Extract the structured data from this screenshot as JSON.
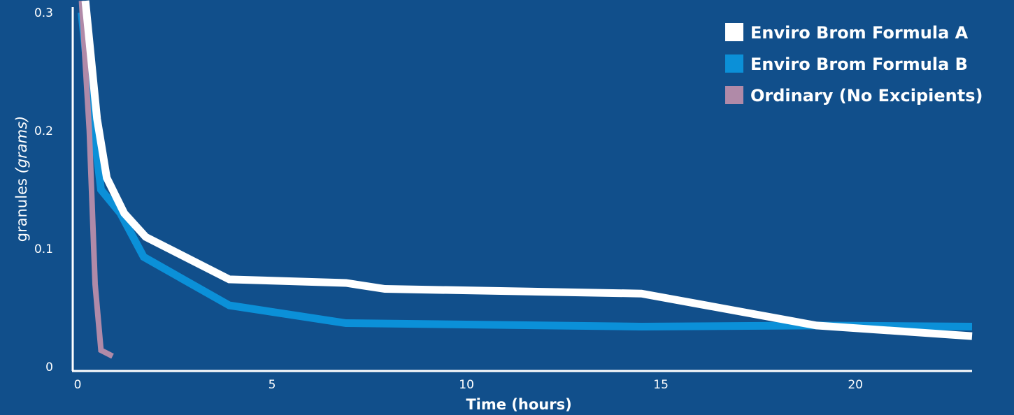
{
  "chart_data": {
    "type": "line",
    "title": "",
    "xlabel": "Time (hours)",
    "ylabel_main": "granules ",
    "ylabel_unit": "(grams)",
    "xlim": [
      0,
      23
    ],
    "ylim": [
      0,
      0.3
    ],
    "x_ticks": [
      {
        "value": 0,
        "label": "0"
      },
      {
        "value": 5,
        "label": "5"
      },
      {
        "value": 10,
        "label": "10"
      },
      {
        "value": 15,
        "label": "15"
      },
      {
        "value": 20,
        "label": "20"
      }
    ],
    "y_ticks": [
      {
        "value": 0,
        "label": "0"
      },
      {
        "value": 0.1,
        "label": "0.1"
      },
      {
        "value": 0.2,
        "label": "0.2"
      },
      {
        "value": 0.3,
        "label": "0.3"
      }
    ],
    "grid": false,
    "legend_position": "top-right",
    "series": [
      {
        "name": "Enviro Brom Formula A",
        "color": "#ffffff",
        "points": [
          [
            0.2,
            0.31
          ],
          [
            0.5,
            0.21
          ],
          [
            0.75,
            0.16
          ],
          [
            1.2,
            0.13
          ],
          [
            1.75,
            0.11
          ],
          [
            3.9,
            0.074
          ],
          [
            6.9,
            0.071
          ],
          [
            7.9,
            0.066
          ],
          [
            14.5,
            0.062
          ],
          [
            19,
            0.035
          ],
          [
            23,
            0.026
          ]
        ]
      },
      {
        "name": "Enviro Brom Formula B",
        "color": "#0b90d8",
        "points": [
          [
            0.1,
            0.3
          ],
          [
            0.35,
            0.22
          ],
          [
            0.6,
            0.15
          ],
          [
            1.1,
            0.13
          ],
          [
            1.7,
            0.093
          ],
          [
            3.9,
            0.052
          ],
          [
            6.9,
            0.037
          ],
          [
            14.5,
            0.034
          ],
          [
            19,
            0.035
          ],
          [
            23,
            0.034
          ]
        ]
      },
      {
        "name": "Ordinary (No Excipients)",
        "color": "#b08aa8",
        "points": [
          [
            0.1,
            0.31
          ],
          [
            0.3,
            0.2
          ],
          [
            0.45,
            0.07
          ],
          [
            0.6,
            0.014
          ],
          [
            0.9,
            0.009
          ]
        ]
      }
    ]
  }
}
